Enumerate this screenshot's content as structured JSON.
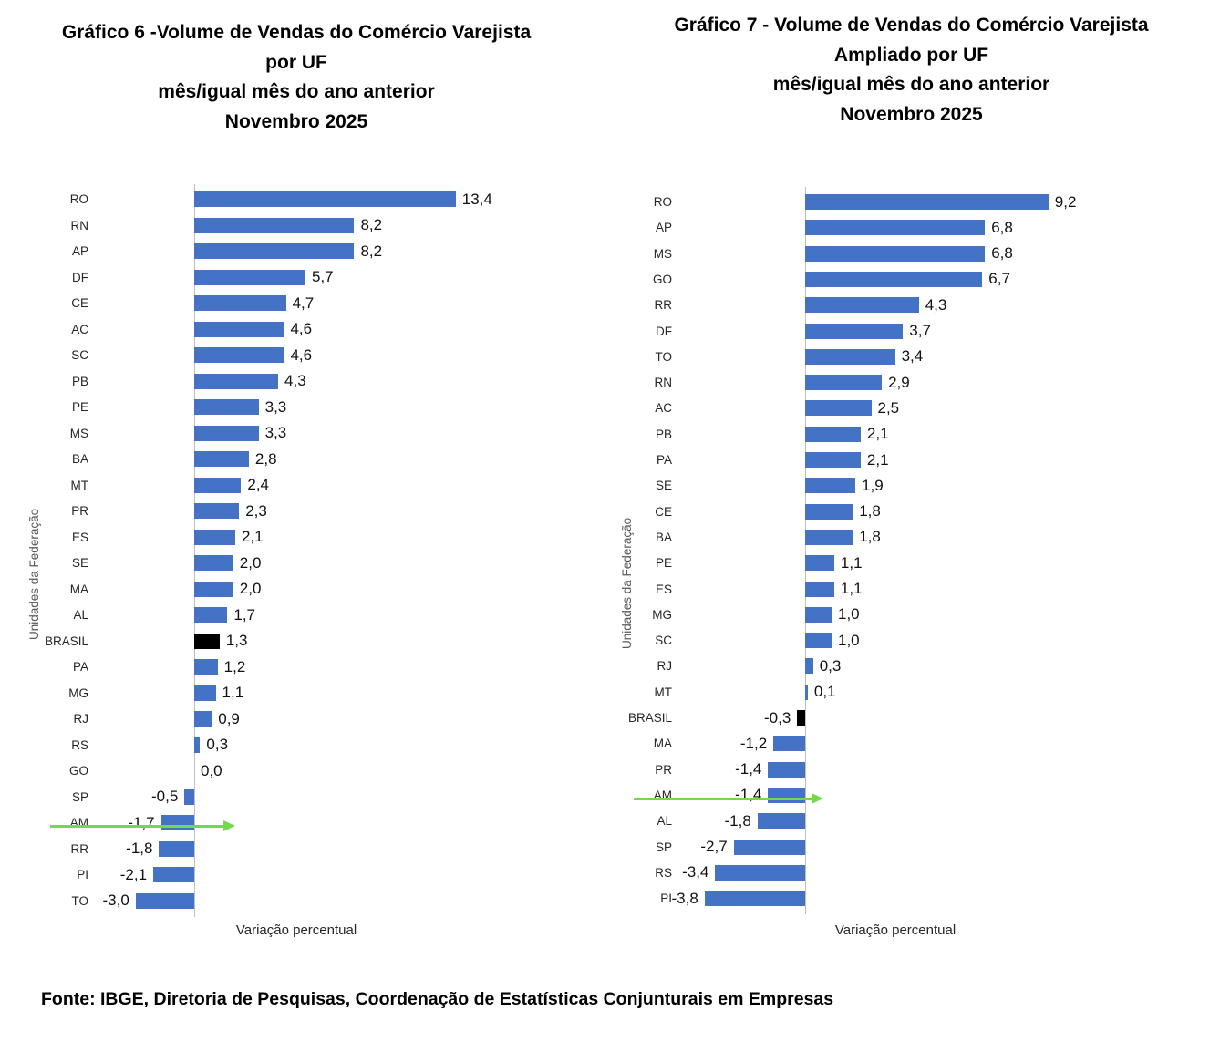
{
  "chart_data": [
    {
      "type": "bar",
      "orientation": "horizontal",
      "title_lines": [
        "Gráfico 6 -Volume de Vendas do Comércio Varejista",
        "por UF",
        "mês/igual mês do ano anterior",
        "Novembro 2025"
      ],
      "xlabel": "Variação percentual",
      "ylabel": "Unidades da Federação",
      "categories": [
        "RO",
        "RN",
        "AP",
        "DF",
        "CE",
        "AC",
        "SC",
        "PB",
        "PE",
        "MS",
        "BA",
        "MT",
        "PR",
        "ES",
        "SE",
        "MA",
        "AL",
        "BRASIL",
        "PA",
        "MG",
        "RJ",
        "RS",
        "GO",
        "SP",
        "AM",
        "RR",
        "PI",
        "TO"
      ],
      "values": [
        13.4,
        8.2,
        8.2,
        5.7,
        4.7,
        4.6,
        4.6,
        4.3,
        3.3,
        3.3,
        2.8,
        2.4,
        2.3,
        2.1,
        2.0,
        2.0,
        1.7,
        1.3,
        1.2,
        1.1,
        0.9,
        0.3,
        0.0,
        -0.5,
        -1.7,
        -1.8,
        -2.1,
        -3.0
      ],
      "highlight_category": "BRASIL",
      "arrow_category": "AM",
      "xlim": [
        -4,
        15
      ],
      "grid": "off",
      "legend": "none",
      "decimal_separator": ","
    },
    {
      "type": "bar",
      "orientation": "horizontal",
      "title_lines": [
        "Gráfico 7 - Volume de Vendas do Comércio Varejista",
        "Ampliado por UF",
        "mês/igual mês do ano anterior",
        "Novembro 2025"
      ],
      "xlabel": "Variação percentual",
      "ylabel": "Unidades da Federação",
      "categories": [
        "RO",
        "AP",
        "MS",
        "GO",
        "RR",
        "DF",
        "TO",
        "RN",
        "AC",
        "PB",
        "PA",
        "SE",
        "CE",
        "BA",
        "PE",
        "ES",
        "MG",
        "SC",
        "RJ",
        "MT",
        "BRASIL",
        "MA",
        "PR",
        "AM",
        "AL",
        "SP",
        "RS",
        "PI"
      ],
      "values": [
        9.2,
        6.8,
        6.8,
        6.7,
        4.3,
        3.7,
        3.4,
        2.9,
        2.5,
        2.1,
        2.1,
        1.9,
        1.8,
        1.8,
        1.1,
        1.1,
        1.0,
        1.0,
        0.3,
        0.1,
        -0.3,
        -1.2,
        -1.4,
        -1.4,
        -1.8,
        -2.7,
        -3.4,
        -3.8
      ],
      "highlight_category": "BRASIL",
      "arrow_category": "AM",
      "xlim": [
        -4.5,
        10
      ],
      "grid": "off",
      "legend": "none",
      "decimal_separator": ","
    }
  ],
  "footer": {
    "source": "Fonte: IBGE, Diretoria de Pesquisas, Coordenação de Estatísticas Conjunturais em Empresas"
  },
  "colors": {
    "bar": "#4472C4",
    "highlight_bar": "#000000",
    "axis_line": "#BFBFBF",
    "arrow": "#72D94A",
    "category_label": "#262626",
    "value_label": "#111111",
    "axis_title": "#595959",
    "title": "#000000"
  }
}
